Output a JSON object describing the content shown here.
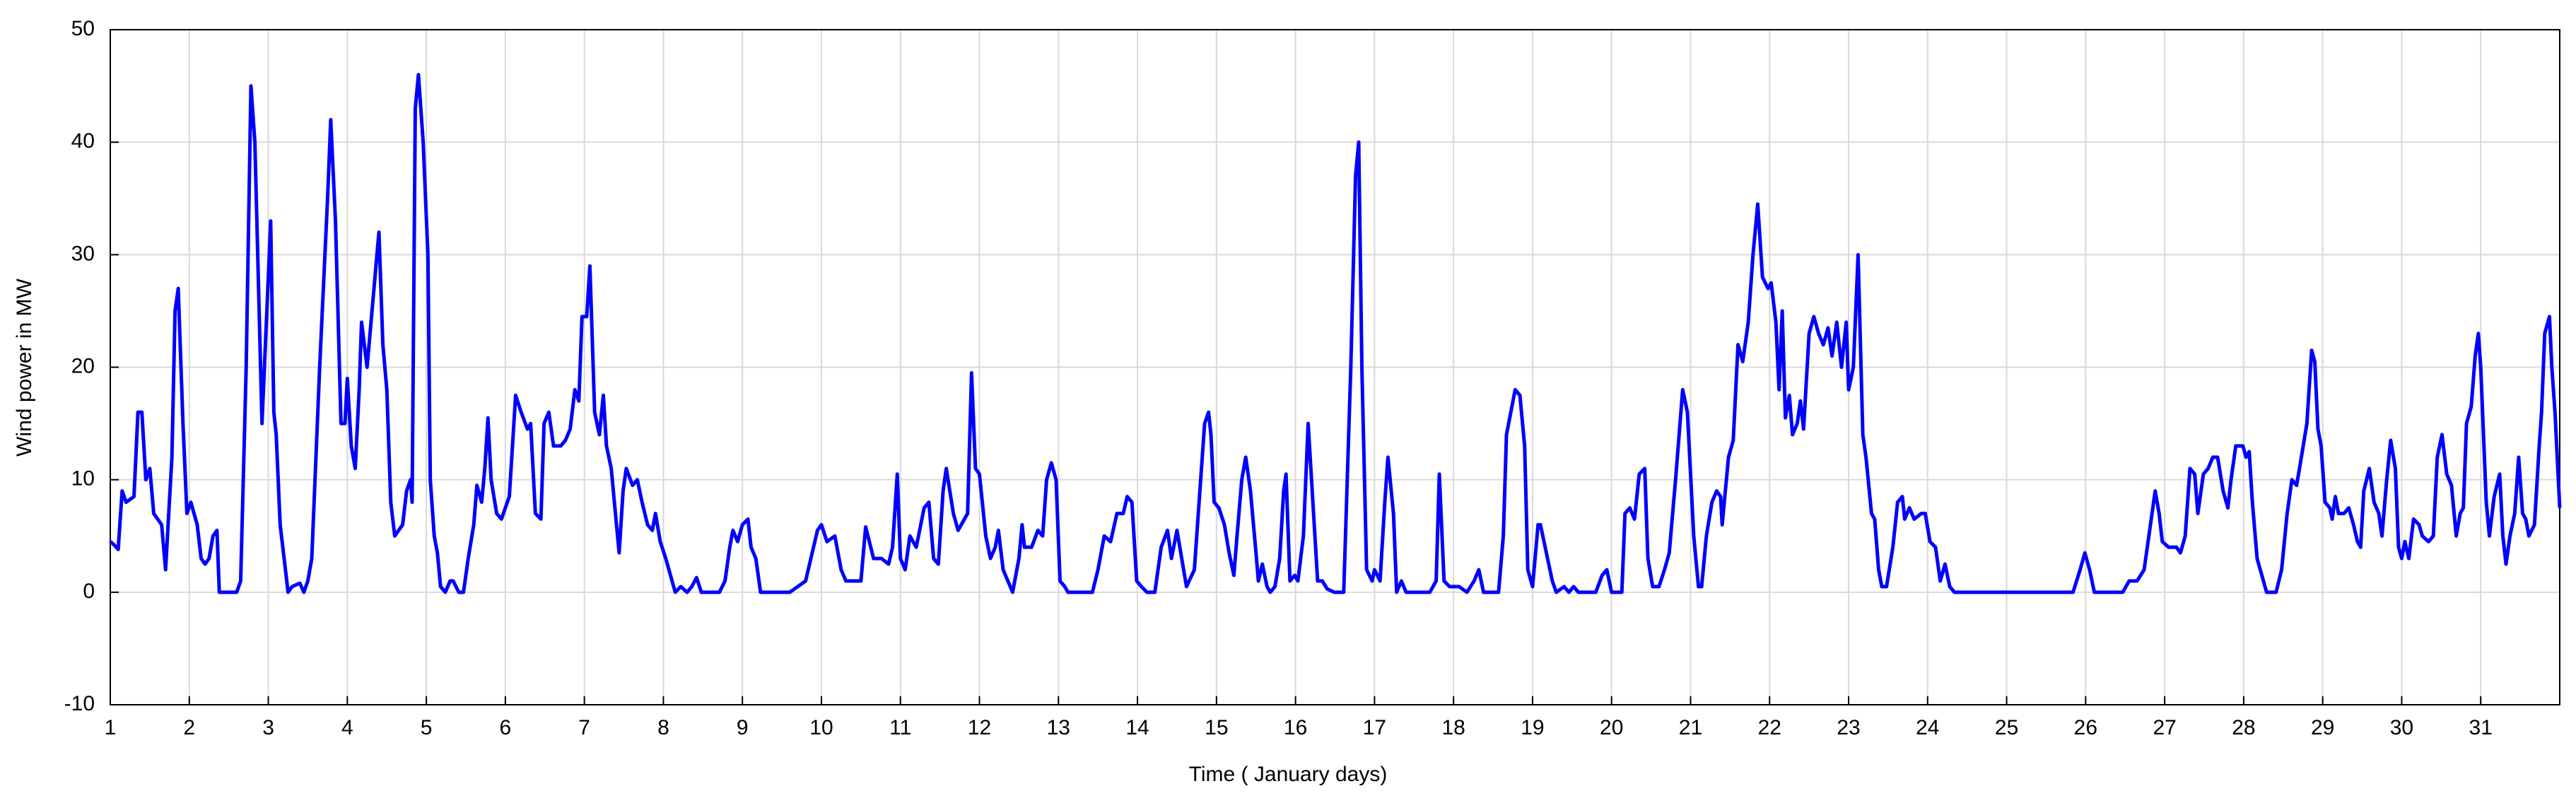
{
  "chart_data": {
    "type": "line",
    "xlabel": "Time ( January days)",
    "ylabel": "Wind power in MW",
    "color": "#0000ff",
    "grid": true,
    "xlim": [
      1,
      32
    ],
    "xticks": [
      1,
      2,
      3,
      4,
      5,
      6,
      7,
      8,
      9,
      10,
      11,
      12,
      13,
      14,
      15,
      16,
      17,
      18,
      19,
      20,
      21,
      22,
      23,
      24,
      25,
      26,
      27,
      28,
      29,
      30,
      31
    ],
    "ylim": [
      -10,
      50
    ],
    "yticks": [
      -10,
      0,
      10,
      20,
      30,
      40,
      50
    ],
    "x": [
      1,
      1.05,
      1.1,
      1.15,
      1.2,
      1.3,
      1.35,
      1.4,
      1.45,
      1.5,
      1.55,
      1.65,
      1.7,
      1.78,
      1.82,
      1.86,
      1.92,
      1.97,
      2.02,
      2.1,
      2.15,
      2.2,
      2.25,
      2.3,
      2.35,
      2.38,
      2.6,
      2.65,
      2.72,
      2.78,
      2.83,
      2.92,
      3.0,
      3.03,
      3.07,
      3.1,
      3.15,
      3.2,
      3.25,
      3.3,
      3.4,
      3.45,
      3.5,
      3.55,
      3.65,
      3.75,
      3.79,
      3.85,
      3.92,
      3.97,
      4.0,
      4.05,
      4.1,
      4.15,
      4.18,
      4.25,
      4.35,
      4.4,
      4.45,
      4.5,
      4.55,
      4.6,
      4.7,
      4.75,
      4.8,
      4.82,
      4.86,
      4.9,
      4.96,
      5.02,
      5.05,
      5.1,
      5.14,
      5.18,
      5.24,
      5.3,
      5.34,
      5.41,
      5.47,
      5.53,
      5.6,
      5.64,
      5.7,
      5.74,
      5.78,
      5.82,
      5.89,
      5.95,
      6.05,
      6.13,
      6.2,
      6.28,
      6.32,
      6.38,
      6.45,
      6.49,
      6.55,
      6.61,
      6.7,
      6.76,
      6.82,
      6.88,
      6.93,
      6.97,
      7.03,
      7.07,
      7.13,
      7.19,
      7.24,
      7.28,
      7.34,
      7.38,
      7.44,
      7.49,
      7.53,
      7.61,
      7.67,
      7.73,
      7.8,
      7.86,
      7.9,
      7.96,
      8.03,
      8.09,
      8.15,
      8.22,
      8.3,
      8.36,
      8.42,
      8.48,
      8.71,
      8.78,
      8.84,
      8.88,
      8.94,
      9.0,
      9.07,
      9.11,
      9.17,
      9.23,
      9.6,
      9.7,
      9.8,
      9.9,
      9.95,
      10.0,
      10.07,
      10.17,
      10.25,
      10.31,
      10.4,
      10.5,
      10.56,
      10.66,
      10.76,
      10.85,
      10.9,
      10.96,
      11.0,
      11.06,
      11.12,
      11.2,
      11.3,
      11.36,
      11.42,
      11.48,
      11.54,
      11.58,
      11.67,
      11.73,
      11.81,
      11.85,
      11.9,
      11.95,
      12.0,
      12.08,
      12.14,
      12.2,
      12.24,
      12.3,
      12.36,
      12.42,
      12.5,
      12.54,
      12.57,
      12.66,
      12.74,
      12.8,
      12.85,
      12.91,
      12.97,
      13.02,
      13.08,
      13.12,
      13.43,
      13.5,
      13.58,
      13.66,
      13.74,
      13.82,
      13.87,
      13.93,
      13.99,
      14.05,
      14.12,
      14.22,
      14.3,
      14.38,
      14.43,
      14.5,
      14.56,
      14.62,
      14.72,
      14.8,
      14.85,
      14.9,
      14.93,
      14.97,
      15.03,
      15.1,
      15.16,
      15.22,
      15.26,
      15.32,
      15.37,
      15.43,
      15.5,
      15.53,
      15.58,
      15.64,
      15.68,
      15.74,
      15.8,
      15.85,
      15.88,
      15.93,
      15.99,
      16.03,
      16.1,
      16.16,
      16.22,
      16.28,
      16.34,
      16.4,
      16.49,
      16.61,
      16.7,
      16.76,
      16.8,
      16.84,
      16.9,
      16.97,
      17.0,
      17.07,
      17.13,
      17.17,
      17.24,
      17.28,
      17.34,
      17.4,
      17.7,
      17.78,
      17.82,
      17.88,
      17.95,
      18.07,
      18.17,
      18.26,
      18.32,
      18.38,
      18.57,
      18.63,
      18.67,
      18.78,
      18.84,
      18.9,
      18.94,
      19.0,
      19.07,
      19.1,
      19.19,
      19.25,
      19.3,
      19.4,
      19.46,
      19.52,
      19.58,
      19.8,
      19.88,
      19.94,
      20.0,
      20.13,
      20.17,
      20.23,
      20.29,
      20.35,
      20.42,
      20.46,
      20.52,
      20.6,
      20.67,
      20.73,
      20.81,
      20.9,
      20.96,
      21.04,
      21.1,
      21.14,
      21.2,
      21.27,
      21.33,
      21.38,
      21.4,
      21.48,
      21.54,
      21.6,
      21.66,
      21.73,
      21.79,
      21.85,
      21.91,
      21.98,
      22.02,
      22.08,
      22.12,
      22.16,
      22.2,
      22.25,
      22.29,
      22.35,
      22.39,
      22.43,
      22.5,
      22.56,
      22.62,
      22.68,
      22.74,
      22.79,
      22.85,
      22.91,
      22.97,
      23.0,
      23.06,
      23.12,
      23.18,
      23.22,
      23.29,
      23.33,
      23.38,
      23.42,
      23.48,
      23.56,
      23.62,
      23.68,
      23.71,
      23.77,
      23.83,
      23.92,
      23.97,
      24.03,
      24.1,
      24.16,
      24.22,
      24.28,
      24.34,
      25.84,
      25.93,
      25.99,
      26.05,
      26.11,
      26.47,
      26.55,
      26.65,
      26.74,
      26.8,
      26.88,
      26.93,
      26.97,
      27.05,
      27.15,
      27.2,
      27.26,
      27.32,
      27.38,
      27.42,
      27.49,
      27.55,
      27.61,
      27.67,
      27.74,
      27.8,
      27.84,
      27.9,
      27.99,
      28.03,
      28.07,
      28.11,
      28.17,
      28.23,
      28.29,
      28.41,
      28.48,
      28.55,
      28.61,
      28.67,
      28.73,
      28.8,
      28.86,
      28.9,
      28.94,
      28.98,
      29.03,
      29.09,
      29.12,
      29.16,
      29.2,
      29.27,
      29.33,
      29.39,
      29.44,
      29.48,
      29.52,
      29.59,
      29.65,
      29.71,
      29.75,
      29.81,
      29.86,
      29.92,
      29.96,
      30.0,
      30.04,
      30.09,
      30.15,
      30.22,
      30.26,
      30.34,
      30.4,
      30.45,
      30.51,
      30.57,
      30.63,
      30.69,
      30.74,
      30.78,
      30.82,
      30.88,
      30.93,
      30.97,
      31.0,
      31.07,
      31.11,
      31.17,
      31.24,
      31.28,
      31.32,
      31.37,
      31.43,
      31.48,
      31.53,
      31.57,
      31.61,
      31.68,
      31.74,
      31.77,
      31.81,
      31.87,
      31.9,
      31.94,
      32.0
    ],
    "values": [
      4.5,
      4.2,
      3.8,
      9,
      8,
      8.5,
      16,
      16,
      10,
      11,
      7,
      6,
      2,
      12,
      25,
      27,
      15,
      7,
      8,
      6,
      3,
      2.5,
      3,
      5,
      5.5,
      0,
      0,
      1,
      20,
      45,
      40,
      15,
      28,
      33,
      16,
      14,
      6,
      3,
      0,
      0.5,
      0.8,
      0,
      1,
      3,
      20,
      35,
      42,
      33,
      15,
      15,
      19,
      13,
      11,
      18,
      24,
      20,
      28,
      32,
      22,
      18,
      8,
      5,
      6,
      9,
      10,
      8,
      43,
      46,
      40,
      30,
      10,
      5,
      3.5,
      0.5,
      0,
      1,
      1,
      0,
      0,
      3,
      6,
      9.5,
      8,
      11,
      15.5,
      10,
      7,
      6.5,
      8.5,
      17.5,
      16,
      14.5,
      15,
      7,
      6.5,
      15,
      16,
      13,
      13,
      13.5,
      14.5,
      18,
      17,
      24.5,
      24.5,
      29,
      16,
      14,
      17.5,
      13,
      11,
      8,
      3.5,
      9,
      11,
      9.5,
      10,
      8,
      6,
      5.5,
      7,
      4.5,
      3,
      1.5,
      0,
      0.5,
      0,
      0.5,
      1.3,
      0,
      0,
      1,
      4,
      5.5,
      4.5,
      6,
      6.5,
      4,
      3,
      0,
      0,
      0.5,
      1,
      4,
      5.5,
      6,
      4.5,
      5,
      2,
      1,
      1,
      1,
      5.8,
      3,
      3,
      2.5,
      4,
      10.5,
      3,
      2,
      5,
      4,
      7.5,
      8,
      3,
      2.5,
      9,
      11,
      7,
      5.5,
      6.5,
      7,
      19.5,
      11,
      10.5,
      5,
      3,
      4,
      5.5,
      2,
      1,
      0,
      3,
      6,
      4,
      4,
      5.5,
      5,
      10,
      11.5,
      10,
      1,
      0.5,
      0,
      0,
      2,
      5,
      4.5,
      7,
      7,
      8.5,
      8,
      1,
      0.5,
      0,
      0,
      4,
      5.5,
      3,
      5.5,
      3,
      0.5,
      2,
      10,
      15,
      16,
      14,
      8,
      7.5,
      6,
      3.5,
      1.5,
      5,
      10,
      12,
      9,
      3.5,
      1,
      2.5,
      0.5,
      0,
      0.5,
      3,
      9,
      10.5,
      1,
      1.5,
      1,
      5,
      15,
      8,
      1,
      1,
      0.3,
      0,
      0,
      20,
      37,
      40,
      20,
      2,
      1,
      2,
      1,
      8,
      12,
      7,
      0,
      1,
      0,
      0,
      1,
      10.5,
      1,
      0.5,
      0.5,
      0,
      1,
      2,
      0,
      0,
      5,
      14,
      18,
      17.5,
      13,
      2,
      0.5,
      6,
      6,
      3,
      1,
      0,
      0.5,
      0,
      0.5,
      0,
      0,
      1.5,
      2,
      0,
      0,
      7,
      7.5,
      6.5,
      10.5,
      11,
      3,
      0.5,
      0.5,
      2,
      3.5,
      10,
      18,
      16,
      5,
      0.5,
      0.5,
      5,
      8,
      9,
      8.5,
      6,
      12,
      13.5,
      22,
      20.5,
      24,
      30,
      34.5,
      28,
      27,
      27.5,
      24,
      18,
      25,
      15.5,
      17.5,
      14,
      15,
      17,
      14.5,
      23,
      24.5,
      23,
      22,
      23.5,
      21,
      24,
      20,
      24,
      18,
      20,
      30,
      14,
      12,
      7,
      6.5,
      2,
      0.5,
      0.5,
      4,
      8,
      8.5,
      6.5,
      7.5,
      6.5,
      7,
      7,
      4.5,
      4,
      1,
      2.5,
      0.5,
      0,
      0,
      2,
      3.5,
      2,
      0,
      0,
      1,
      1,
      2,
      5,
      9,
      7,
      4.5,
      4,
      4,
      3.5,
      5,
      11,
      10.5,
      7,
      10.5,
      11,
      12,
      12,
      9,
      7.5,
      10,
      13,
      13,
      12,
      12.5,
      8,
      3,
      1.5,
      0,
      0,
      2,
      7,
      10,
      9.5,
      12,
      15,
      21.5,
      20.5,
      14.5,
      13,
      8,
      7.5,
      6.5,
      8.5,
      7,
      7,
      7.5,
      6,
      4.5,
      4,
      9,
      11,
      8,
      7,
      5,
      10,
      13.5,
      11,
      4,
      3,
      4.5,
      3,
      6.5,
      6,
      5,
      4.5,
      5,
      12,
      14,
      10.5,
      9.5,
      5,
      7,
      7.5,
      15,
      16.5,
      21,
      23,
      20,
      8,
      5,
      8.5,
      10.5,
      5,
      2.5,
      5,
      7,
      12,
      7,
      6.5,
      5,
      6,
      13,
      16,
      23,
      24.5,
      20,
      16,
      7.5
    ]
  }
}
